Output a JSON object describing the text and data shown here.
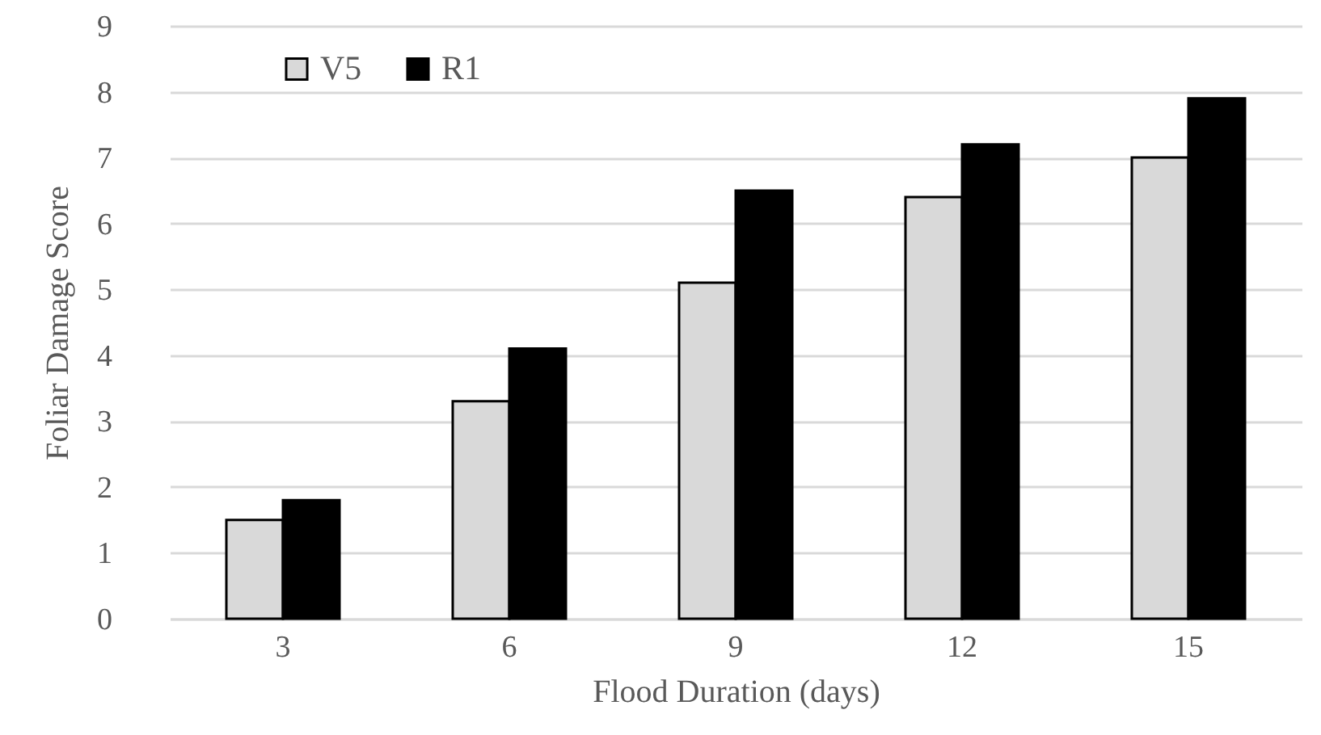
{
  "chart_data": {
    "type": "bar",
    "xlabel": "Flood Duration (days)",
    "ylabel": "Foliar Damage Score",
    "categories": [
      "3",
      "6",
      "9",
      "12",
      "15"
    ],
    "series": [
      {
        "name": "V5",
        "color": "#d9d9d9",
        "values": [
          1.5,
          3.3,
          5.1,
          6.4,
          7.0
        ]
      },
      {
        "name": "R1",
        "color": "#000000",
        "values": [
          1.8,
          4.1,
          6.5,
          7.2,
          7.9
        ]
      }
    ],
    "ylim": [
      0,
      9
    ],
    "yticks": [
      0,
      1,
      2,
      3,
      4,
      5,
      6,
      7,
      8,
      9
    ],
    "grid": "y",
    "legend": "top left"
  }
}
